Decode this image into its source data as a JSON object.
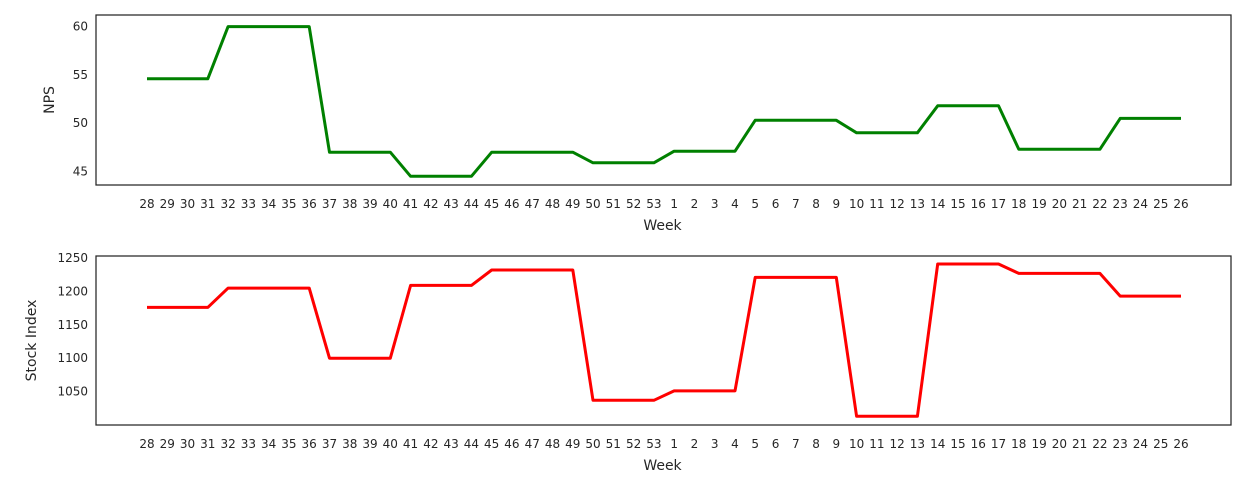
{
  "chart_data": [
    {
      "type": "line",
      "xlabel": "Week",
      "ylabel": "NPS",
      "categories": [
        "28",
        "29",
        "30",
        "31",
        "32",
        "33",
        "34",
        "35",
        "36",
        "37",
        "38",
        "39",
        "40",
        "41",
        "42",
        "43",
        "44",
        "45",
        "46",
        "47",
        "48",
        "49",
        "50",
        "51",
        "52",
        "53",
        "1",
        "2",
        "3",
        "4",
        "5",
        "6",
        "7",
        "8",
        "9",
        "10",
        "11",
        "12",
        "13",
        "14",
        "15",
        "16",
        "17",
        "18",
        "19",
        "20",
        "21",
        "22",
        "23",
        "24",
        "25",
        "26"
      ],
      "values": [
        54.6,
        54.6,
        54.6,
        54.6,
        60,
        60,
        60,
        60,
        60,
        47,
        47,
        47,
        47,
        44.5,
        44.5,
        44.5,
        44.5,
        47,
        47,
        47,
        47,
        47,
        45.9,
        45.9,
        45.9,
        45.9,
        47.1,
        47.1,
        47.1,
        47.1,
        50.3,
        50.3,
        50.3,
        50.3,
        50.3,
        49,
        49,
        49,
        49,
        51.8,
        51.8,
        51.8,
        51.8,
        47.3,
        47.3,
        47.3,
        47.3,
        47.3,
        50.5,
        50.5,
        50.5,
        50.5
      ],
      "yticks": [
        45,
        50,
        55,
        60
      ],
      "ylim": [
        43.6,
        61.2
      ],
      "color": "#008000",
      "grid": false
    },
    {
      "type": "line",
      "xlabel": "Week",
      "ylabel": "Stock Index",
      "categories": [
        "28",
        "29",
        "30",
        "31",
        "32",
        "33",
        "34",
        "35",
        "36",
        "37",
        "38",
        "39",
        "40",
        "41",
        "42",
        "43",
        "44",
        "45",
        "46",
        "47",
        "48",
        "49",
        "50",
        "51",
        "52",
        "53",
        "1",
        "2",
        "3",
        "4",
        "5",
        "6",
        "7",
        "8",
        "9",
        "10",
        "11",
        "12",
        "13",
        "14",
        "15",
        "16",
        "17",
        "18",
        "19",
        "20",
        "21",
        "22",
        "23",
        "24",
        "25",
        "26"
      ],
      "values": [
        1176,
        1176,
        1176,
        1176,
        1205,
        1205,
        1205,
        1205,
        1205,
        1100,
        1100,
        1100,
        1100,
        1209,
        1209,
        1209,
        1209,
        1232,
        1232,
        1232,
        1232,
        1232,
        1037,
        1037,
        1037,
        1037,
        1051,
        1051,
        1051,
        1051,
        1221,
        1221,
        1221,
        1221,
        1221,
        1013,
        1013,
        1013,
        1013,
        1241,
        1241,
        1241,
        1241,
        1227,
        1227,
        1227,
        1227,
        1227,
        1193,
        1193,
        1193,
        1193
      ],
      "yticks": [
        1050,
        1100,
        1150,
        1200,
        1250
      ],
      "ylim": [
        1000,
        1253
      ],
      "color": "#ff0000",
      "grid": false
    }
  ]
}
